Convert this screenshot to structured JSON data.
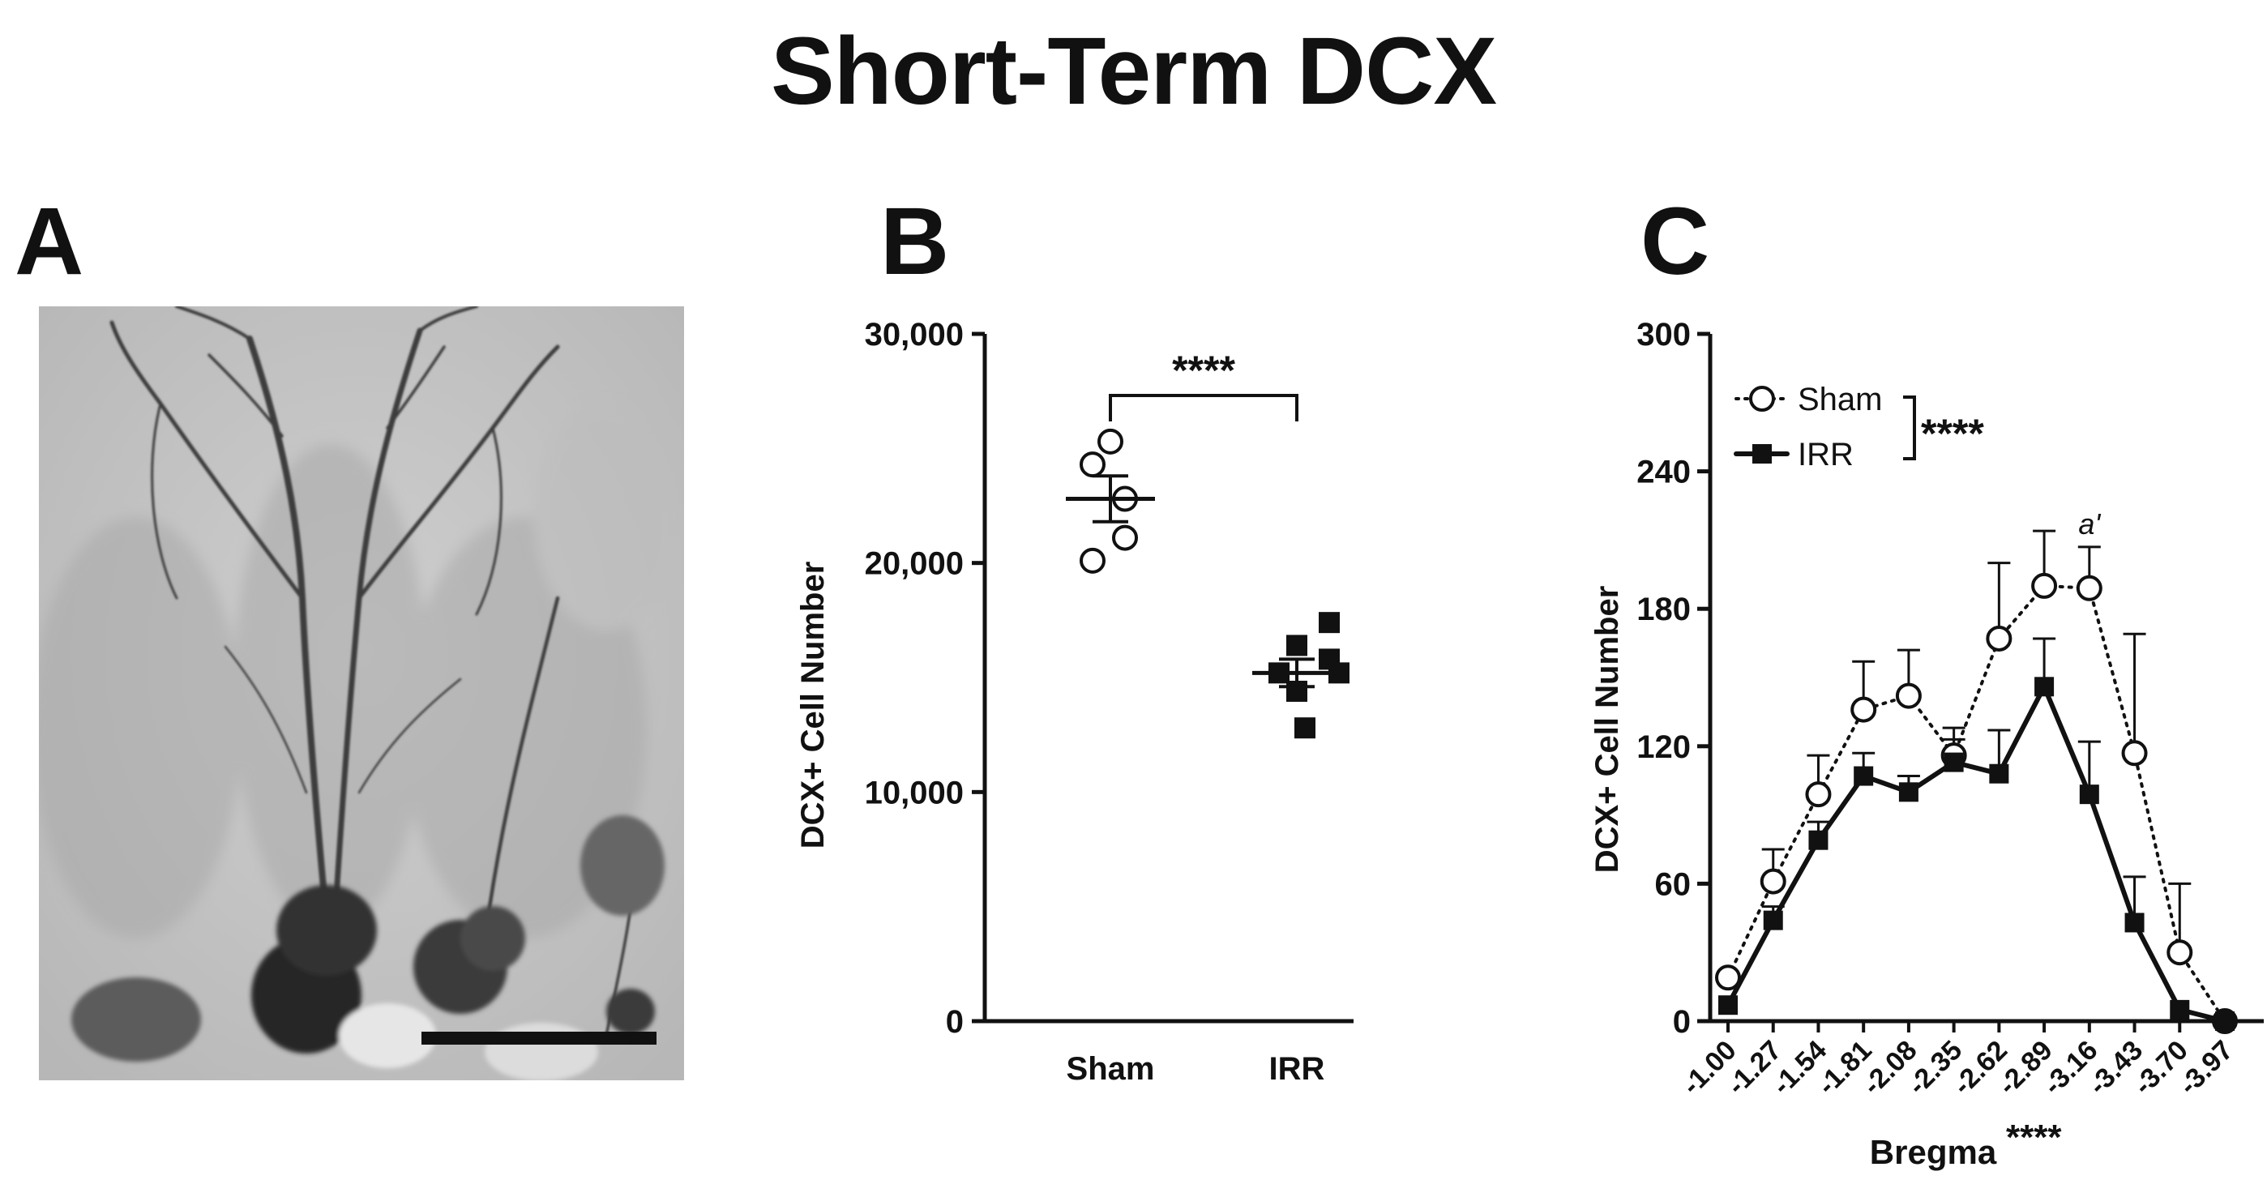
{
  "figure": {
    "title": "Short-Term DCX",
    "panel_labels": [
      "A",
      "B",
      "C"
    ]
  },
  "colors": {
    "ink": "#111111",
    "background": "#ffffff",
    "micrograph": "#c6c6c6"
  },
  "chart_data": [
    {
      "panel": "B",
      "type": "scatter",
      "ylabel": "DCX+ Cell Number",
      "xlabel": "",
      "categories": [
        "Sham",
        "IRR"
      ],
      "ylim": [
        0,
        30000
      ],
      "yticks": [
        0,
        10000,
        20000,
        30000
      ],
      "ytick_labels": [
        "0",
        "10,000",
        "20,000",
        "30,000"
      ],
      "series": [
        {
          "name": "Sham",
          "marker": "open-circle",
          "points": [
            25300,
            24300,
            22800,
            21100,
            20100
          ],
          "mean": 22800,
          "sem": 1000
        },
        {
          "name": "IRR",
          "marker": "filled-square",
          "points": [
            17400,
            16400,
            15800,
            15200,
            15200,
            14400,
            12800
          ],
          "mean": 15200,
          "sem": 600
        }
      ],
      "significance": {
        "text": "****",
        "between": [
          "Sham",
          "IRR"
        ]
      },
      "grid": false,
      "legend": "none"
    },
    {
      "panel": "C",
      "type": "line",
      "xlabel": "Bregma",
      "xlabel_annotation": "****",
      "ylabel": "DCX+ Cell Number",
      "categories": [
        "-1.00",
        "-1.27",
        "-1.54",
        "-1.81",
        "-2.08",
        "-2.35",
        "-2.62",
        "-2.89",
        "-3.16",
        "-3.43",
        "-3.70",
        "-3.97"
      ],
      "ylim": [
        0,
        300
      ],
      "yticks": [
        0,
        60,
        120,
        180,
        240,
        300
      ],
      "series": [
        {
          "name": "Sham",
          "marker": "open-circle",
          "line": "dotted",
          "values": [
            19,
            61,
            99,
            136,
            142,
            116,
            167,
            190,
            189,
            117,
            30,
            0
          ],
          "error": [
            0,
            14,
            17,
            21,
            20,
            12,
            33,
            24,
            18,
            52,
            30,
            0
          ]
        },
        {
          "name": "IRR",
          "marker": "filled-square",
          "line": "solid",
          "values": [
            7,
            44,
            79,
            107,
            100,
            113,
            108,
            146,
            99,
            43,
            5,
            0
          ],
          "error": [
            0,
            6,
            8,
            10,
            7,
            10,
            19,
            21,
            23,
            20,
            0,
            0
          ]
        }
      ],
      "legend": "top-left",
      "legend_significance": "****",
      "annotations": [
        {
          "category": "-3.16",
          "text": "a'"
        }
      ],
      "grid": false
    }
  ]
}
